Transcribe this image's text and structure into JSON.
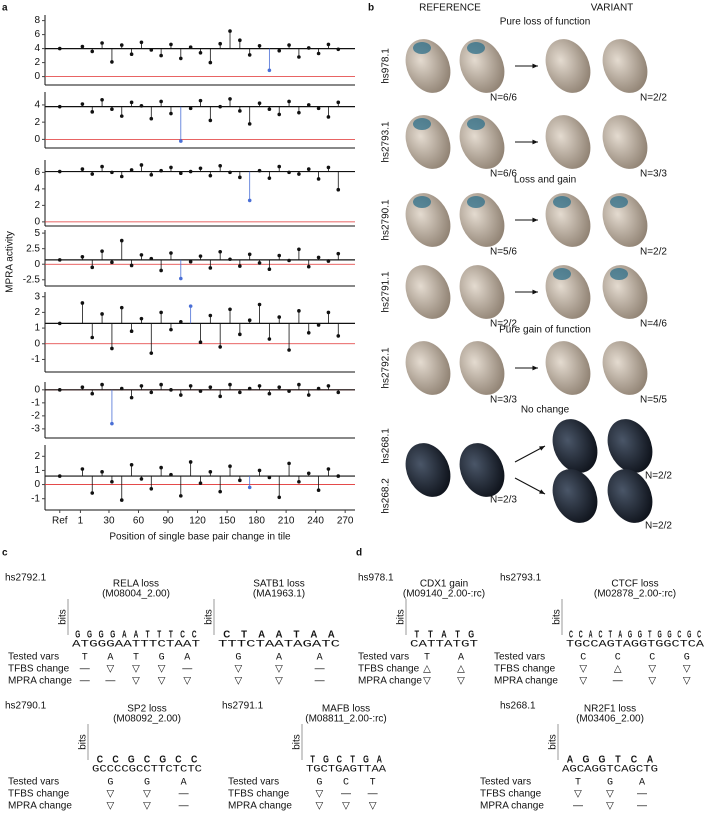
{
  "panel_letters": [
    "a",
    "b",
    "c",
    "d"
  ],
  "chart_data": {
    "type": "dot",
    "ylabel": "MPRA activity",
    "xlabel": "Position of single base pair change in tile",
    "xlim": [
      -35,
      280
    ],
    "xticks": [
      {
        "value": -20,
        "label": "Ref"
      },
      1,
      30,
      60,
      90,
      120,
      150,
      180,
      210,
      240,
      270
    ],
    "x": [
      3,
      13,
      23,
      33,
      43,
      53,
      63,
      73,
      83,
      93,
      103,
      113,
      123,
      133,
      143,
      153,
      163,
      173,
      183,
      193,
      203,
      213,
      223,
      233,
      243,
      253,
      263
    ],
    "point_color": "#111111",
    "highlight_color": "#4a6fd6",
    "ref_line_color": "#111111",
    "zero_line_color": "#e03030",
    "plots": [
      {
        "ylim": [
          -1.2,
          8.8
        ],
        "yticks": [
          0,
          2,
          4,
          6,
          8
        ],
        "ref": 4,
        "highlight": [
          193
        ],
        "values": [
          4.3,
          3.6,
          4.8,
          2.1,
          4.5,
          3.2,
          4.9,
          3.8,
          3.0,
          4.6,
          2.6,
          4.2,
          3.4,
          2.0,
          4.7,
          6.5,
          5.2,
          3.1,
          4.4,
          0.9,
          3.7,
          4.5,
          2.8,
          4.1,
          3.3,
          4.6,
          3.9
        ]
      },
      {
        "ylim": [
          -1,
          5.5
        ],
        "yticks": [
          0,
          2,
          4
        ],
        "ref": 3.8,
        "highlight": [
          103
        ],
        "values": [
          4.1,
          3.2,
          4.6,
          3.5,
          2.7,
          4.3,
          3.9,
          2.4,
          4.4,
          3.0,
          -0.2,
          3.6,
          4.5,
          2.2,
          3.8,
          4.7,
          3.3,
          1.8,
          4.2,
          3.5,
          2.9,
          4.4,
          3.1,
          4.0,
          3.6,
          2.6,
          4.3
        ]
      },
      {
        "ylim": [
          -0.5,
          7.5
        ],
        "yticks": [
          0,
          2,
          4,
          6
        ],
        "ref": 6.1,
        "highlight": [
          173
        ],
        "values": [
          6.4,
          5.8,
          6.7,
          6.0,
          5.5,
          6.3,
          6.9,
          5.7,
          6.2,
          6.6,
          5.9,
          6.1,
          6.5,
          5.6,
          6.8,
          6.0,
          5.4,
          2.6,
          6.2,
          5.3,
          6.7,
          6.0,
          5.8,
          6.4,
          5.2,
          6.6,
          3.9
        ]
      },
      {
        "ylim": [
          -3.5,
          5.5
        ],
        "yticks": [
          -2.5,
          0,
          2.5,
          5
        ],
        "ref": 0.7,
        "highlight": [
          103
        ],
        "values": [
          1.2,
          -0.5,
          2.1,
          0.3,
          3.8,
          -0.2,
          1.5,
          0.9,
          -1.0,
          1.8,
          -2.3,
          0.4,
          1.3,
          -0.6,
          2.0,
          0.8,
          -0.3,
          1.6,
          0.2,
          -0.8,
          1.4,
          0.6,
          2.4,
          -0.4,
          1.1,
          0.5,
          1.7
        ]
      },
      {
        "ylim": [
          -1.8,
          3.3
        ],
        "yticks": [
          -1,
          0,
          1,
          2,
          3
        ],
        "ref": 1.3,
        "highlight": [
          113
        ],
        "values": [
          2.6,
          0.4,
          1.9,
          -0.3,
          2.3,
          0.8,
          1.6,
          -0.6,
          2.0,
          0.9,
          1.4,
          2.4,
          0.1,
          1.8,
          -0.2,
          2.2,
          0.6,
          1.5,
          2.5,
          0.3,
          1.7,
          -0.4,
          2.1,
          0.7,
          1.2,
          2.0,
          0.5
        ]
      },
      {
        "ylim": [
          -3.7,
          0.6
        ],
        "yticks": [
          -3,
          -2,
          -1,
          0
        ],
        "ref": 0,
        "highlight": [
          33
        ],
        "values": [
          0.2,
          -0.3,
          0.4,
          -2.6,
          0.1,
          -0.6,
          0.3,
          -0.2,
          0.4,
          0.0,
          -0.4,
          0.3,
          -0.1,
          0.2,
          -0.5,
          0.4,
          -0.2,
          0.1,
          0.3,
          -0.3,
          0.2,
          -0.1,
          0.4,
          -0.4,
          0.1,
          0.3,
          -0.2
        ]
      },
      {
        "ylim": [
          -1.8,
          2.8
        ],
        "yticks": [
          -1,
          0,
          1,
          2
        ],
        "ref": 0.6,
        "highlight": [
          173
        ],
        "values": [
          1.1,
          -0.6,
          0.9,
          0.2,
          -1.1,
          1.4,
          0.4,
          -0.3,
          1.2,
          0.7,
          -0.8,
          1.6,
          0.1,
          0.9,
          -0.5,
          1.3,
          0.3,
          -0.2,
          1.0,
          0.5,
          -0.9,
          1.5,
          0.2,
          0.8,
          -0.4,
          1.1,
          0.6
        ]
      }
    ]
  },
  "panel_b": {
    "headers": [
      "REFERENCE",
      "VARIANT"
    ],
    "sections": [
      "Pure loss of function",
      "Loss and gain",
      "Pure gain of function",
      "No change"
    ],
    "rows": [
      {
        "name": "hs978.1",
        "n": [
          "N=6/6",
          "N=2/2"
        ]
      },
      {
        "name": "hs2793.1",
        "n": [
          "N=6/6",
          "N=3/3"
        ]
      },
      {
        "name": "hs2790.1",
        "n": [
          "N=5/6",
          "N=2/2"
        ]
      },
      {
        "name": "hs2791.1",
        "n": [
          "N=2/2",
          "N=4/6"
        ]
      },
      {
        "name": "hs2792.1",
        "n": [
          "N=3/3",
          "N=5/5"
        ]
      },
      {
        "name": "hs268.1",
        "n": [
          "N=2/3",
          "N=2/2"
        ]
      },
      {
        "name": "hs268.2",
        "n": [
          "N=2/2"
        ]
      }
    ]
  },
  "motif_panels": {
    "row_labels": [
      "Tested vars",
      "TFBS change",
      "MPRA change"
    ],
    "logo_axis": "bits",
    "groups": [
      {
        "name": "hs2792.1",
        "motifs": [
          {
            "tf": "RELA loss",
            "id": "(M08004_2.00)",
            "logo": [
              "G",
              "G",
              "G",
              "G",
              "A",
              "A",
              "T",
              "T",
              "T",
              "C",
              "C"
            ],
            "seq": "ATGGGAATTTCTAAT",
            "vars": [
              {
                "base": "T",
                "tfbs": "—",
                "tfbs_color": "#2e9c3e",
                "mpra": "—",
                "mpra_color": "#2e9c3e"
              },
              {
                "base": "A",
                "tfbs": "▽",
                "tfbs_color": "#d62728",
                "mpra": "—",
                "mpra_color": "#2e9c3e"
              },
              {
                "base": "T",
                "tfbs": "▽",
                "tfbs_color": "#2e9c3e",
                "mpra": "▽",
                "mpra_color": "#2e9c3e"
              },
              {
                "base": "G",
                "tfbs": "▽",
                "tfbs_color": "#2e9c3e",
                "mpra": "▽",
                "mpra_color": "#2e9c3e"
              },
              {
                "base": "A",
                "tfbs": "—",
                "tfbs_color": "#d62728",
                "mpra": "▽",
                "mpra_color": "#d62728"
              }
            ]
          },
          {
            "tf": "SATB1 loss",
            "id": "(MA1963.1)",
            "logo": [
              "C",
              "T",
              "A",
              "A",
              "T",
              "A",
              "A"
            ],
            "seq": "TTTCTAATAGATC",
            "vars": [
              {
                "base": "G",
                "tfbs": "▽",
                "tfbs_color": "#2e9c3e",
                "mpra": "▽",
                "mpra_color": "#2e9c3e"
              },
              {
                "base": "A",
                "tfbs": "▽",
                "tfbs_color": "#2e9c3e",
                "mpra": "▽",
                "mpra_color": "#2e9c3e"
              },
              {
                "base": "A",
                "tfbs": "—",
                "tfbs_color": "#2e9c3e",
                "mpra": "—",
                "mpra_color": "#2e9c3e"
              }
            ]
          }
        ]
      },
      {
        "name": "hs2790.1",
        "motifs": [
          {
            "tf": "SP2 loss",
            "id": "(M08092_2.00)",
            "logo": [
              "C",
              "C",
              "G",
              "C",
              "G",
              "C",
              "C"
            ],
            "seq": "GCCCCGCCTTCTCTC",
            "vars": [
              {
                "base": "G",
                "tfbs": "▽",
                "tfbs_color": "#2e9c3e",
                "mpra": "▽",
                "mpra_color": "#2e9c3e"
              },
              {
                "base": "G",
                "tfbs": "▽",
                "tfbs_color": "#2e9c3e",
                "mpra": "▽",
                "mpra_color": "#2e9c3e"
              },
              {
                "base": "A",
                "tfbs": "—",
                "tfbs_color": "#2e9c3e",
                "mpra": "—",
                "mpra_color": "#2e9c3e"
              }
            ]
          }
        ]
      },
      {
        "name": "hs2791.1",
        "motifs": [
          {
            "tf": "MAFB loss",
            "id": "(M08811_2.00-:rc)",
            "logo": [
              "T",
              "G",
              "C",
              "T",
              "G",
              "A"
            ],
            "seq": "TGCTGAGTTAA",
            "vars": [
              {
                "base": "G",
                "tfbs": "▽",
                "tfbs_color": "#2e9c3e",
                "mpra": "▽",
                "mpra_color": "#2e9c3e"
              },
              {
                "base": "C",
                "tfbs": "—",
                "tfbs_color": "#d62728",
                "mpra": "▽",
                "mpra_color": "#d62728"
              },
              {
                "base": "T",
                "tfbs": "—",
                "tfbs_color": "#d62728",
                "mpra": "▽",
                "mpra_color": "#d62728"
              }
            ]
          }
        ]
      },
      {
        "name": "hs978.1",
        "motifs": [
          {
            "tf": "CDX1 gain",
            "id": "(M09140_2.00-:rc)",
            "logo": [
              "T",
              "T",
              "A",
              "T",
              "G"
            ],
            "seq": "CATTATGT",
            "vars": [
              {
                "base": "T",
                "tfbs": "△",
                "tfbs_color": "#d62728",
                "mpra": "▽",
                "mpra_color": "#d62728"
              },
              {
                "base": "A",
                "tfbs": "△",
                "tfbs_color": "#d62728",
                "mpra": "▽",
                "mpra_color": "#d62728"
              }
            ]
          }
        ]
      },
      {
        "name": "hs2793.1",
        "motifs": [
          {
            "tf": "CTCF loss",
            "id": "(M02878_2.00-:rc)",
            "logo": [
              "C",
              "C",
              "A",
              "C",
              "T",
              "A",
              "G",
              "G",
              "T",
              "G",
              "G",
              "C",
              "G",
              "C"
            ],
            "seq": "TGCCAGTAGGTGGCTCA",
            "vars": [
              {
                "base": "C",
                "tfbs": "▽",
                "tfbs_color": "#2e9c3e",
                "mpra": "▽",
                "mpra_color": "#2e9c3e"
              },
              {
                "base": "C",
                "tfbs": "△",
                "tfbs_color": "#d62728",
                "mpra": "—",
                "mpra_color": "#d62728"
              },
              {
                "base": "C",
                "tfbs": "▽",
                "tfbs_color": "#2e9c3e",
                "mpra": "▽",
                "mpra_color": "#2e9c3e"
              },
              {
                "base": "G",
                "tfbs": "▽",
                "tfbs_color": "#2e9c3e",
                "mpra": "▽",
                "mpra_color": "#2e9c3e"
              }
            ]
          }
        ]
      },
      {
        "name": "hs268.1",
        "motifs": [
          {
            "tf": "NR2F1 loss",
            "id": "(M03406_2.00)",
            "logo": [
              "A",
              "G",
              "G",
              "T",
              "C",
              "A"
            ],
            "seq": "AGCAGGTCAGCTG",
            "vars": [
              {
                "base": "T",
                "tfbs": "▽",
                "tfbs_color": "#d62728",
                "mpra": "—",
                "mpra_color": "#d62728"
              },
              {
                "base": "G",
                "tfbs": "▽",
                "tfbs_color": "#2e9c3e",
                "mpra": "▽",
                "mpra_color": "#2e9c3e"
              },
              {
                "base": "A",
                "tfbs": "—",
                "tfbs_color": "#2e9c3e",
                "mpra": "—",
                "mpra_color": "#2e9c3e"
              }
            ]
          }
        ]
      }
    ]
  }
}
